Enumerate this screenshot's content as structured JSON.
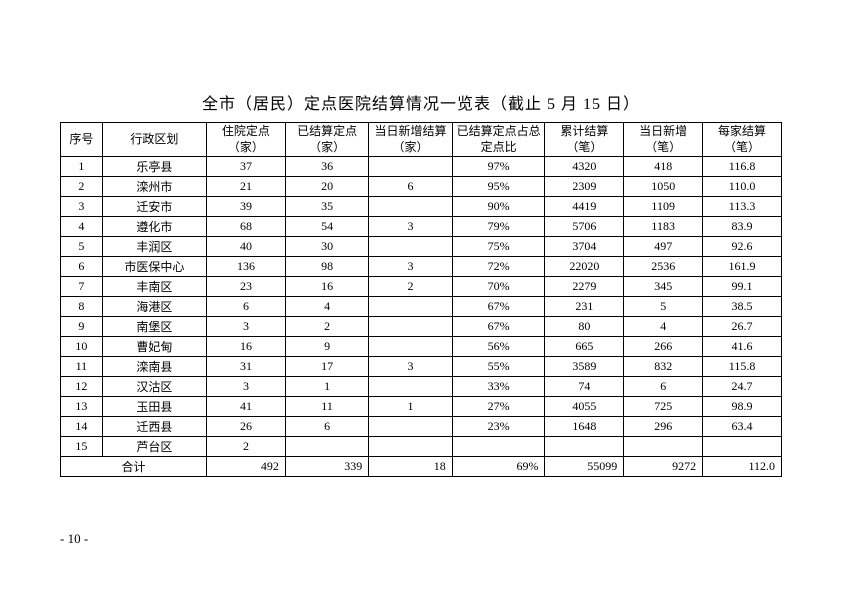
{
  "title": "全市（居民）定点医院结算情况一览表（截止 5 月 15 日）",
  "page_number": "- 10 -",
  "headers": {
    "seq": "序号",
    "region": "行政区划",
    "col_a": "住院定点（家）",
    "col_b": "已结算定点（家）",
    "col_c": "当日新增结算（家）",
    "col_d": "已结算定点占总定点比",
    "col_e": "累计结算（笔）",
    "col_f": "当日新增（笔）",
    "col_g": "每家结算（笔）"
  },
  "rows": [
    {
      "seq": "1",
      "region": "乐亭县",
      "a": "37",
      "b": "36",
      "c": "",
      "d": "97%",
      "e": "4320",
      "f": "418",
      "g": "116.8"
    },
    {
      "seq": "2",
      "region": "滦州市",
      "a": "21",
      "b": "20",
      "c": "6",
      "d": "95%",
      "e": "2309",
      "f": "1050",
      "g": "110.0"
    },
    {
      "seq": "3",
      "region": "迁安市",
      "a": "39",
      "b": "35",
      "c": "",
      "d": "90%",
      "e": "4419",
      "f": "1109",
      "g": "113.3"
    },
    {
      "seq": "4",
      "region": "遵化市",
      "a": "68",
      "b": "54",
      "c": "3",
      "d": "79%",
      "e": "5706",
      "f": "1183",
      "g": "83.9"
    },
    {
      "seq": "5",
      "region": "丰润区",
      "a": "40",
      "b": "30",
      "c": "",
      "d": "75%",
      "e": "3704",
      "f": "497",
      "g": "92.6"
    },
    {
      "seq": "6",
      "region": "市医保中心",
      "a": "136",
      "b": "98",
      "c": "3",
      "d": "72%",
      "e": "22020",
      "f": "2536",
      "g": "161.9"
    },
    {
      "seq": "7",
      "region": "丰南区",
      "a": "23",
      "b": "16",
      "c": "2",
      "d": "70%",
      "e": "2279",
      "f": "345",
      "g": "99.1"
    },
    {
      "seq": "8",
      "region": "海港区",
      "a": "6",
      "b": "4",
      "c": "",
      "d": "67%",
      "e": "231",
      "f": "5",
      "g": "38.5"
    },
    {
      "seq": "9",
      "region": "南堡区",
      "a": "3",
      "b": "2",
      "c": "",
      "d": "67%",
      "e": "80",
      "f": "4",
      "g": "26.7"
    },
    {
      "seq": "10",
      "region": "曹妃甸",
      "a": "16",
      "b": "9",
      "c": "",
      "d": "56%",
      "e": "665",
      "f": "266",
      "g": "41.6"
    },
    {
      "seq": "11",
      "region": "滦南县",
      "a": "31",
      "b": "17",
      "c": "3",
      "d": "55%",
      "e": "3589",
      "f": "832",
      "g": "115.8"
    },
    {
      "seq": "12",
      "region": "汉沽区",
      "a": "3",
      "b": "1",
      "c": "",
      "d": "33%",
      "e": "74",
      "f": "6",
      "g": "24.7"
    },
    {
      "seq": "13",
      "region": "玉田县",
      "a": "41",
      "b": "11",
      "c": "1",
      "d": "27%",
      "e": "4055",
      "f": "725",
      "g": "98.9"
    },
    {
      "seq": "14",
      "region": "迁西县",
      "a": "26",
      "b": "6",
      "c": "",
      "d": "23%",
      "e": "1648",
      "f": "296",
      "g": "63.4"
    },
    {
      "seq": "15",
      "region": "芦台区",
      "a": "2",
      "b": "",
      "c": "",
      "d": "",
      "e": "",
      "f": "",
      "g": ""
    }
  ],
  "total": {
    "label": "合计",
    "a": "492",
    "b": "339",
    "c": "18",
    "d": "69%",
    "e": "55099",
    "f": "9272",
    "g": "112.0"
  },
  "colors": {
    "background": "#ffffff",
    "text": "#000000",
    "border": "#000000"
  }
}
